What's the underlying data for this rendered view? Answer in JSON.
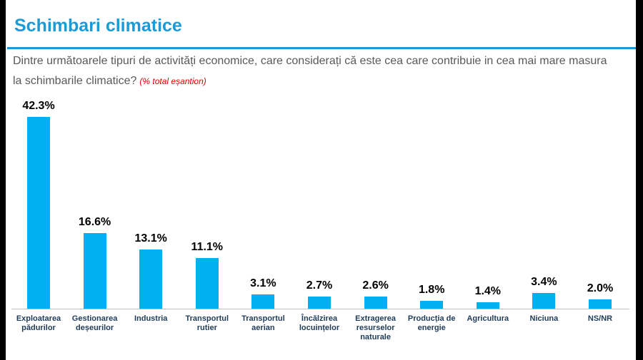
{
  "chart_data": {
    "type": "bar",
    "title": "Schimbari climatice",
    "subtitle": "Dintre următoarele tipuri de activități economice, care considerați că este cea care contribuie in cea mai mare masura la schimbarile climatice?",
    "note": "(% total eșantion)",
    "categories": [
      "Exploatarea pădurilor",
      "Gestionarea deșeurilor",
      "Industria",
      "Transportul rutier",
      "Transportul aerian",
      "Încălzirea locuințelor",
      "Extragerea resurselor naturale",
      "Producția de energie",
      "Agricultura",
      "Niciuna",
      "NS/NR"
    ],
    "values": [
      42.3,
      16.6,
      13.1,
      11.1,
      3.1,
      2.7,
      2.6,
      1.8,
      1.4,
      3.4,
      2.0
    ],
    "value_labels": [
      "42.3%",
      "16.6%",
      "13.1%",
      "11.1%",
      "3.1%",
      "2.7%",
      "2.6%",
      "1.8%",
      "1.4%",
      "3.4%",
      "2.0%"
    ],
    "color": "#00b0f0"
  }
}
